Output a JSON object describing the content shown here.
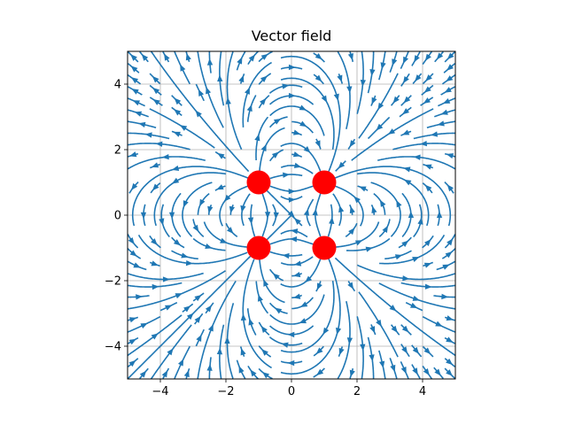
{
  "chart_data": {
    "type": "streamplot",
    "title": "Vector field",
    "xlabel": "",
    "ylabel": "",
    "xlim": [
      -5,
      5
    ],
    "ylim": [
      -5,
      5
    ],
    "grid": true,
    "x_ticks": [
      -4,
      -2,
      0,
      2,
      4
    ],
    "y_ticks": [
      -4,
      -2,
      0,
      2,
      4
    ],
    "x_tick_labels": [
      "−4",
      "−2",
      "0",
      "2",
      "4"
    ],
    "y_tick_labels": [
      "−4",
      "−2",
      "0",
      "2",
      "4"
    ],
    "stream_color": "#1f77b4",
    "charges": [
      {
        "x": -1,
        "y": 1,
        "q": 1
      },
      {
        "x": 1,
        "y": 1,
        "q": -1
      },
      {
        "x": -1,
        "y": -1,
        "q": -1
      },
      {
        "x": 1,
        "y": -1,
        "q": 1
      }
    ],
    "charge_color": "#ff0000"
  }
}
